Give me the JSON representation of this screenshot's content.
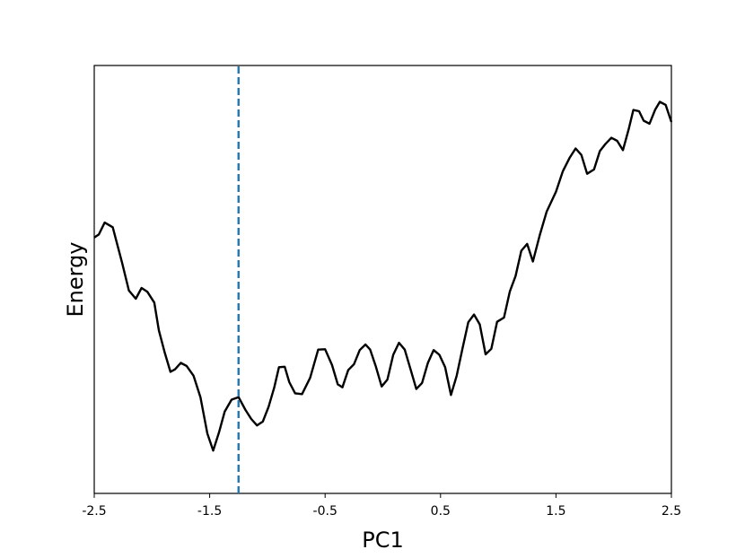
{
  "chart_data": {
    "type": "line",
    "title": "",
    "xlabel": "PC1",
    "ylabel": "Energy",
    "xlim": [
      -2.5,
      2.5
    ],
    "ylim": [
      0,
      10
    ],
    "x_ticks": [
      "-2.5",
      "-1.5",
      "-0.5",
      "0.5",
      "1.5",
      "2.5"
    ],
    "y_ticks_shown": false,
    "grid": false,
    "series": [
      {
        "color": "#000000",
        "x": [
          -2.5,
          -2.46,
          -2.41,
          -2.34,
          -2.26,
          -2.2,
          -2.14,
          -2.09,
          -2.04,
          -1.98,
          -1.94,
          -1.89,
          -1.84,
          -1.8,
          -1.75,
          -1.7,
          -1.64,
          -1.58,
          -1.52,
          -1.47,
          -1.42,
          -1.37,
          -1.31,
          -1.25,
          -1.19,
          -1.14,
          -1.09,
          -1.04,
          -0.99,
          -0.94,
          -0.9,
          -0.85,
          -0.81,
          -0.76,
          -0.7,
          -0.63,
          -0.56,
          -0.5,
          -0.44,
          -0.39,
          -0.35,
          -0.3,
          -0.25,
          -0.2,
          -0.15,
          -0.11,
          -0.06,
          -0.01,
          0.04,
          0.09,
          0.14,
          0.19,
          0.24,
          0.29,
          0.34,
          0.39,
          0.44,
          0.49,
          0.54,
          0.59,
          0.64,
          0.69,
          0.74,
          0.79,
          0.84,
          0.89,
          0.94,
          0.99,
          1.05,
          1.1,
          1.15,
          1.2,
          1.25,
          1.3,
          1.36,
          1.42,
          1.5,
          1.56,
          1.62,
          1.67,
          1.72,
          1.77,
          1.83,
          1.88,
          1.93,
          1.98,
          2.03,
          2.08,
          2.13,
          2.17,
          2.22,
          2.26,
          2.31,
          2.36,
          2.4,
          2.45,
          2.5
        ],
        "y": [
          5.98,
          6.05,
          6.33,
          6.22,
          5.4,
          4.74,
          4.55,
          4.8,
          4.71,
          4.46,
          3.81,
          3.3,
          2.84,
          2.9,
          3.05,
          2.98,
          2.75,
          2.25,
          1.4,
          1.0,
          1.42,
          1.91,
          2.19,
          2.25,
          1.95,
          1.74,
          1.59,
          1.68,
          2.02,
          2.48,
          2.95,
          2.96,
          2.6,
          2.34,
          2.32,
          2.7,
          3.36,
          3.37,
          3.0,
          2.55,
          2.48,
          2.88,
          3.02,
          3.35,
          3.48,
          3.36,
          2.96,
          2.5,
          2.66,
          3.24,
          3.52,
          3.36,
          2.9,
          2.44,
          2.58,
          3.05,
          3.35,
          3.24,
          2.95,
          2.3,
          2.75,
          3.38,
          4.0,
          4.18,
          3.95,
          3.25,
          3.38,
          4.01,
          4.11,
          4.72,
          5.08,
          5.67,
          5.83,
          5.42,
          6.04,
          6.59,
          7.05,
          7.53,
          7.85,
          8.06,
          7.91,
          7.47,
          7.57,
          8.0,
          8.17,
          8.31,
          8.24,
          8.02,
          8.51,
          8.96,
          8.93,
          8.71,
          8.64,
          8.97,
          9.15,
          9.08,
          8.68
        ]
      },
      {
        "color": "#1f77b4",
        "style": "dashed",
        "x": [
          -1.25,
          -1.25
        ],
        "y": [
          0,
          10
        ]
      }
    ]
  }
}
